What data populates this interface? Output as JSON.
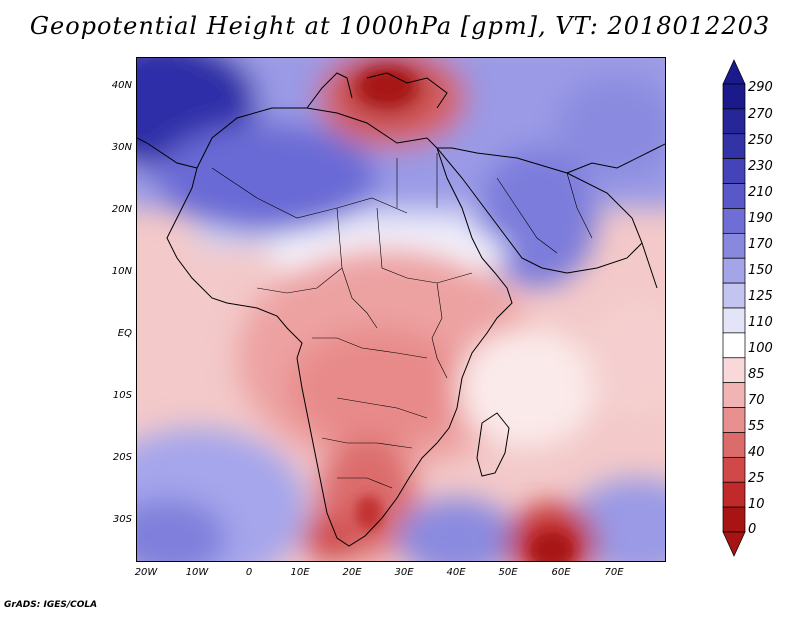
{
  "title": "Geopotential Height at 1000hPa [gpm], VT: 2018012203",
  "credit": "GrADS: IGES/COLA",
  "map": {
    "type": "filled-contour",
    "variable": "Geopotential Height",
    "level": "1000hPa",
    "units": "gpm",
    "valid_time": "2018012203",
    "lat_labels": [
      "40N",
      "30N",
      "20N",
      "10N",
      "EQ",
      "10S",
      "20S",
      "30S"
    ],
    "lon_labels": [
      "20W",
      "10W",
      "0",
      "10E",
      "20E",
      "30E",
      "40E",
      "50E",
      "60E",
      "70E"
    ]
  },
  "colorbar": {
    "levels": [
      "290",
      "270",
      "250",
      "230",
      "210",
      "190",
      "170",
      "150",
      "125",
      "110",
      "100",
      "85",
      "70",
      "55",
      "40",
      "25",
      "10",
      "0"
    ],
    "colors": [
      "#1a1a8c",
      "#262699",
      "#3333a8",
      "#4444b8",
      "#5858c8",
      "#6e6ed4",
      "#8888de",
      "#a4a4e8",
      "#c4c4f0",
      "#e4e4f8",
      "#ffffff",
      "#f8d8d8",
      "#f0b4b4",
      "#e89090",
      "#dc6c6c",
      "#d04848",
      "#c02a2a",
      "#a81414"
    ]
  }
}
